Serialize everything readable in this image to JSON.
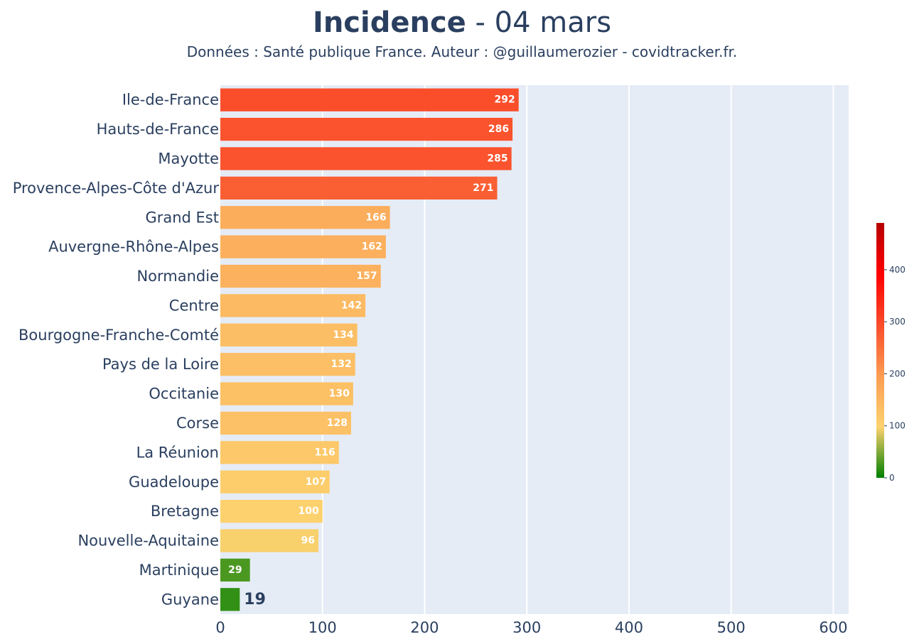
{
  "header": {
    "title_bold": "Incidence",
    "title_rest": " - 04 mars",
    "subtitle": "Données : Santé publique France. Auteur : @guillaumerozier - covidtracker.fr."
  },
  "chart_data": {
    "type": "bar",
    "orientation": "horizontal",
    "categories": [
      "Ile-de-France",
      "Hauts-de-France",
      "Mayotte",
      "Provence-Alpes-Côte d'Azur",
      "Grand Est",
      "Auvergne-Rhône-Alpes",
      "Normandie",
      "Centre",
      "Bourgogne-Franche-Comté",
      "Pays de la Loire",
      "Occitanie",
      "Corse",
      "La Réunion",
      "Guadeloupe",
      "Bretagne",
      "Nouvelle-Aquitaine",
      "Martinique",
      "Guyane"
    ],
    "values": [
      292,
      286,
      285,
      271,
      166,
      162,
      157,
      142,
      134,
      132,
      130,
      128,
      116,
      107,
      100,
      96,
      29,
      19
    ],
    "title": "Incidence - 04 mars",
    "xlabel": "",
    "ylabel": "",
    "xlim": [
      0,
      615
    ],
    "xticks": [
      0,
      100,
      200,
      300,
      400,
      500,
      600
    ],
    "grid": true,
    "plot_background": "#e5ecf6",
    "colorbar": {
      "range": [
        0,
        490
      ],
      "ticks": [
        0,
        100,
        200,
        300,
        400
      ],
      "colorscale": [
        "#008000",
        "#fdd26e",
        "#fb9c53",
        "#fa4c2a",
        "#ff0000",
        "#b60000"
      ],
      "placement": "right"
    }
  }
}
